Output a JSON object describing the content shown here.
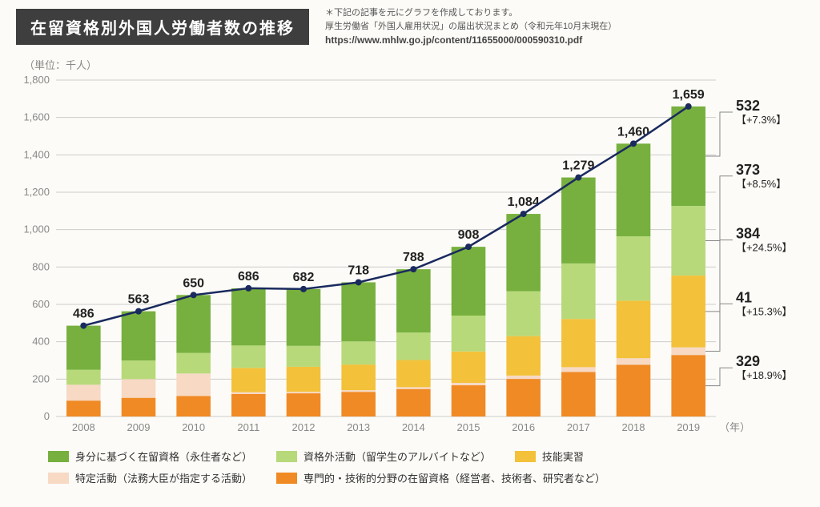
{
  "title": "在留資格別外国人労働者数の推移",
  "source_note1": "＊下記の記事を元にグラフを作成しております。",
  "source_note2": "厚生労働省「外国人雇用状況」の届出状況まとめ（令和元年10月末現在）",
  "source_url": "https://www.mhlw.go.jp/content/11655000/000590310.pdf",
  "unit_label": "（単位：千人）",
  "x_axis_suffix": "（年）",
  "chart": {
    "type": "stacked-bar-with-line",
    "ylim": [
      0,
      1800
    ],
    "ytick_step": 200,
    "years": [
      2008,
      2009,
      2010,
      2011,
      2012,
      2013,
      2014,
      2015,
      2016,
      2017,
      2018,
      2019
    ],
    "totals": [
      486,
      563,
      650,
      686,
      682,
      718,
      788,
      908,
      1084,
      1279,
      1460,
      1659
    ],
    "series": [
      {
        "key": "professional",
        "label": "専門的・技術的分野の在留資格（経営者、技術者、研究者など）",
        "color": "#f08a24",
        "values": [
          85,
          100,
          110,
          120,
          124,
          132,
          147,
          167,
          201,
          238,
          277,
          329
        ]
      },
      {
        "key": "specified",
        "label": "特定活動（法務大臣が指定する活動）",
        "color": "#f7d9c4",
        "values": [
          85,
          100,
          120,
          10,
          8,
          9,
          10,
          13,
          18,
          26,
          35,
          41
        ]
      },
      {
        "key": "technical",
        "label": "技能実習",
        "color": "#f3c13a",
        "values": [
          0,
          0,
          0,
          130,
          134,
          137,
          145,
          168,
          211,
          258,
          308,
          384
        ]
      },
      {
        "key": "outside",
        "label": "資格外活動（留学生のアルバイトなど）",
        "color": "#b7d97a",
        "values": [
          80,
          100,
          110,
          120,
          112,
          124,
          147,
          192,
          240,
          297,
          344,
          373
        ]
      },
      {
        "key": "status",
        "label": "身分に基づく在留資格（永住者など）",
        "color": "#77b03e",
        "values": [
          236,
          263,
          310,
          306,
          304,
          316,
          339,
          368,
          414,
          460,
          496,
          532
        ]
      }
    ],
    "callouts_2019": [
      {
        "value": 532,
        "pct": "+7.3%",
        "anchor_from_top": 0
      },
      {
        "value": 373,
        "pct": "+8.5%",
        "anchor_from_top": 1
      },
      {
        "value": 384,
        "pct": "+24.5%",
        "anchor_from_top": 2
      },
      {
        "value": 41,
        "pct": "+15.3%",
        "anchor_from_top": 3
      },
      {
        "value": 329,
        "pct": "+18.9%",
        "anchor_from_top": 4
      }
    ],
    "colors": {
      "grid": "#cccccc",
      "axis_text": "#999999",
      "line": "#1a2a5e",
      "marker": "#1a2a5e",
      "background": "#fcfbf7"
    },
    "bar_width_ratio": 0.62,
    "marker_radius": 4,
    "line_width": 2.5
  },
  "legend_order": [
    "status",
    "outside",
    "technical",
    "specified",
    "professional"
  ]
}
